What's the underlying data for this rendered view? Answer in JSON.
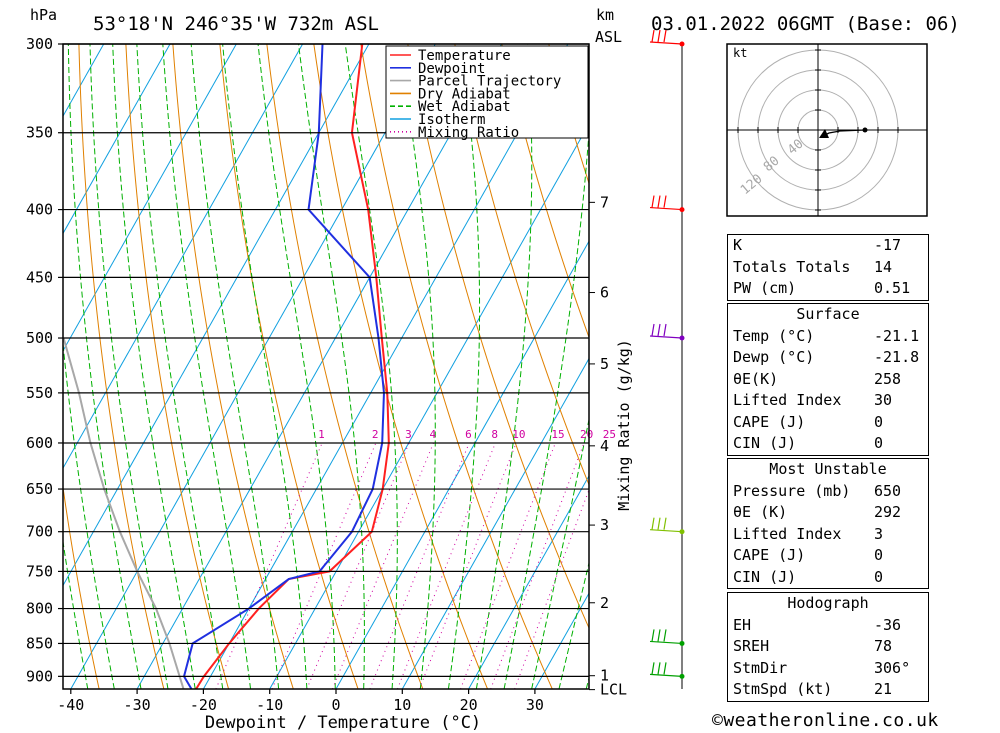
{
  "header": {
    "pressure_unit": "hPa",
    "location": "53°18'N  246°35'W  732m  ASL",
    "height_unit_top": "km",
    "height_unit_bottom": "ASL",
    "datetime": "03.01.2022  06GMT  (Base: 06)"
  },
  "chart_data": {
    "type": "line",
    "title": "Skew-T log-P sounding",
    "xlabel": "Dewpoint / Temperature (°C)",
    "ylabel": "hPa",
    "secondary_ylabel": "Mixing Ratio (g/kg)",
    "xlim": [
      -40,
      30
    ],
    "ylim": [
      920,
      300
    ],
    "x_ticks": [
      -40,
      -30,
      -20,
      -10,
      0,
      10,
      20,
      30
    ],
    "pressure_levels": [
      300,
      350,
      400,
      450,
      500,
      550,
      600,
      650,
      700,
      750,
      800,
      850,
      900
    ],
    "height_km_labels": [
      {
        "label": "7",
        "p": 395
      },
      {
        "label": "6",
        "p": 462
      },
      {
        "label": "5",
        "p": 523
      },
      {
        "label": "4",
        "p": 603
      },
      {
        "label": "3",
        "p": 692
      },
      {
        "label": "2",
        "p": 792
      },
      {
        "label": "1",
        "p": 899
      },
      {
        "label": "LCL",
        "p": 921
      }
    ],
    "mixing_ratio_labels": [
      "1",
      "2",
      "3",
      "4",
      "6",
      "8",
      "10",
      "15",
      "20",
      "25"
    ],
    "mixing_ratio_values": [
      1,
      2,
      3,
      4,
      6,
      8,
      10,
      15,
      20,
      25
    ],
    "legend": [
      {
        "name": "Temperature",
        "color": "#ff2020",
        "style": "solid"
      },
      {
        "name": "Dewpoint",
        "color": "#2030e0",
        "style": "solid"
      },
      {
        "name": "Parcel Trajectory",
        "color": "#a8a8a8",
        "style": "solid"
      },
      {
        "name": "Dry Adiabat",
        "color": "#e08000",
        "style": "solid"
      },
      {
        "name": "Wet Adiabat",
        "color": "#00b000",
        "style": "dashed"
      },
      {
        "name": "Isotherm",
        "color": "#10a0e0",
        "style": "solid"
      },
      {
        "name": "Mixing Ratio",
        "color": "#d000a0",
        "style": "dotted"
      }
    ],
    "series": [
      {
        "name": "Temperature",
        "points": [
          [
            920,
            -21.1
          ],
          [
            900,
            -21
          ],
          [
            850,
            -20
          ],
          [
            800,
            -18.5
          ],
          [
            760,
            -16.5
          ],
          [
            750,
            -11
          ],
          [
            700,
            -8
          ],
          [
            650,
            -10
          ],
          [
            600,
            -13
          ],
          [
            550,
            -17.5
          ],
          [
            500,
            -23
          ],
          [
            450,
            -29
          ],
          [
            400,
            -36
          ],
          [
            350,
            -45
          ],
          [
            300,
            -51
          ]
        ]
      },
      {
        "name": "Dewpoint",
        "points": [
          [
            920,
            -21.8
          ],
          [
            900,
            -24
          ],
          [
            850,
            -25.5
          ],
          [
            800,
            -20
          ],
          [
            760,
            -16.5
          ],
          [
            750,
            -12.5
          ],
          [
            700,
            -11
          ],
          [
            650,
            -11.5
          ],
          [
            600,
            -14
          ],
          [
            550,
            -18
          ],
          [
            500,
            -23.5
          ],
          [
            450,
            -30
          ],
          [
            400,
            -45
          ],
          [
            350,
            -50
          ],
          [
            300,
            -57
          ]
        ]
      },
      {
        "name": "Parcel Trajectory",
        "points": [
          [
            920,
            -23
          ],
          [
            850,
            -29
          ],
          [
            800,
            -34
          ],
          [
            750,
            -40
          ],
          [
            700,
            -46
          ],
          [
            650,
            -52
          ],
          [
            600,
            -58
          ],
          [
            550,
            -64
          ],
          [
            500,
            -71
          ]
        ]
      }
    ],
    "wind_barbs": [
      {
        "p": 300,
        "color": "#ff0000"
      },
      {
        "p": 400,
        "color": "#ff0000"
      },
      {
        "p": 500,
        "color": "#8000c0"
      },
      {
        "p": 700,
        "color": "#80c000"
      },
      {
        "p": 850,
        "color": "#00a000"
      },
      {
        "p": 900,
        "color": "#00a000"
      }
    ]
  },
  "hodograph": {
    "unit_label": "kt",
    "ring_labels": [
      "40",
      "80",
      "120"
    ]
  },
  "indices": {
    "rows": [
      {
        "label": "K",
        "value": "-17"
      },
      {
        "label": "Totals Totals",
        "value": "14"
      },
      {
        "label": "PW (cm)",
        "value": "0.51"
      }
    ]
  },
  "surface": {
    "title": "Surface",
    "rows": [
      {
        "label": "Temp (°C)",
        "value": "-21.1"
      },
      {
        "label": "Dewp (°C)",
        "value": "-21.8"
      },
      {
        "label": "θE(K)",
        "value": "258"
      },
      {
        "label": "Lifted Index",
        "value": "30"
      },
      {
        "label": "CAPE (J)",
        "value": "0"
      },
      {
        "label": "CIN (J)",
        "value": "0"
      }
    ]
  },
  "most_unstable": {
    "title": "Most Unstable",
    "rows": [
      {
        "label": "Pressure (mb)",
        "value": "650"
      },
      {
        "label": "θE (K)",
        "value": "292"
      },
      {
        "label": "Lifted Index",
        "value": "3"
      },
      {
        "label": "CAPE (J)",
        "value": "0"
      },
      {
        "label": "CIN (J)",
        "value": "0"
      }
    ]
  },
  "hodograph_table": {
    "title": "Hodograph",
    "rows": [
      {
        "label": "EH",
        "value": "-36"
      },
      {
        "label": "SREH",
        "value": "78"
      },
      {
        "label": "StmDir",
        "value": "306°"
      },
      {
        "label": "StmSpd (kt)",
        "value": "21"
      }
    ]
  },
  "footer": {
    "copyright": "©weatheronline.co.uk"
  }
}
